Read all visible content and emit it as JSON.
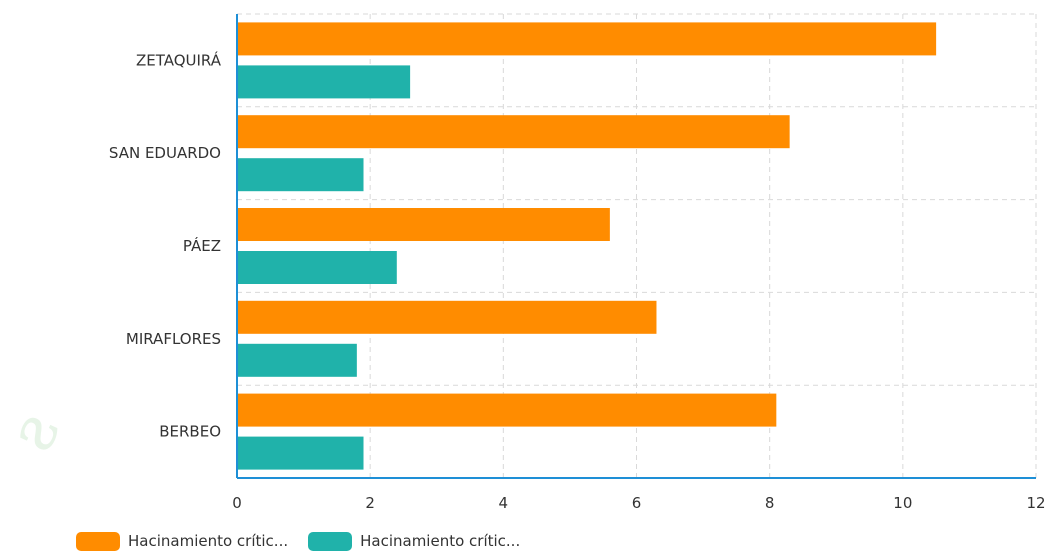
{
  "chart_data": {
    "type": "bar",
    "orientation": "horizontal",
    "categories": [
      "ZETAQUIRÁ",
      "SAN EDUARDO",
      "PÁEZ",
      "MIRAFLORES",
      "BERBEO"
    ],
    "series": [
      {
        "name": "Hacinamiento crític...",
        "color": "#ff8c00",
        "values": [
          10.5,
          8.3,
          5.6,
          6.3,
          8.1
        ]
      },
      {
        "name": "Hacinamiento crític...",
        "color": "#20b2aa",
        "values": [
          2.6,
          1.9,
          2.4,
          1.8,
          1.9
        ]
      }
    ],
    "xlim": [
      0,
      12
    ],
    "xticks": [
      "0",
      "2",
      "4",
      "6",
      "8",
      "10",
      "12"
    ],
    "grid": true,
    "legend_position": "bottom-left",
    "axis_color": "#1e8fd6"
  }
}
